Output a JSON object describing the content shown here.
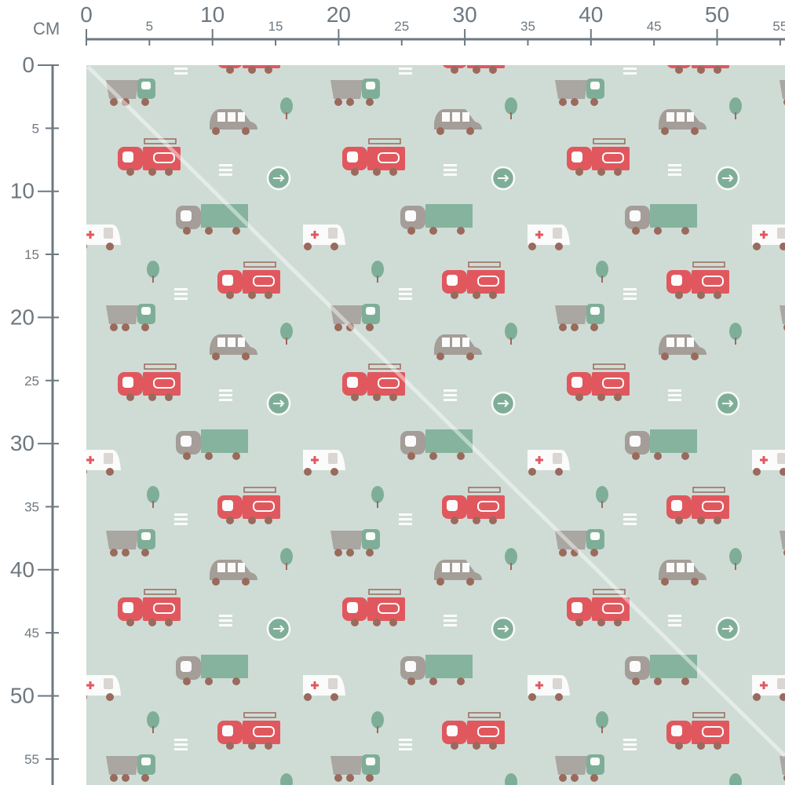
{
  "ruler": {
    "unit": "CM",
    "horizontal_labels": [
      "0",
      "5",
      "10",
      "15",
      "20",
      "25",
      "30",
      "35",
      "40",
      "45",
      "50",
      "55"
    ],
    "vertical_labels": [
      "0",
      "5",
      "10",
      "15",
      "20",
      "25",
      "30",
      "35",
      "40",
      "45",
      "50",
      "55"
    ],
    "color": "#6e7880"
  },
  "fabric": {
    "background": "#cfdcd6",
    "motifs": [
      "dump-truck",
      "car",
      "tree",
      "fire-truck",
      "road-lines",
      "arrow-sign",
      "cargo-truck",
      "ambulance"
    ],
    "colors": {
      "red": "#e0585e",
      "green": "#7fae98",
      "gray": "#a49d98",
      "white": "#fbfbfb",
      "wheel": "#9a6a5c"
    }
  }
}
